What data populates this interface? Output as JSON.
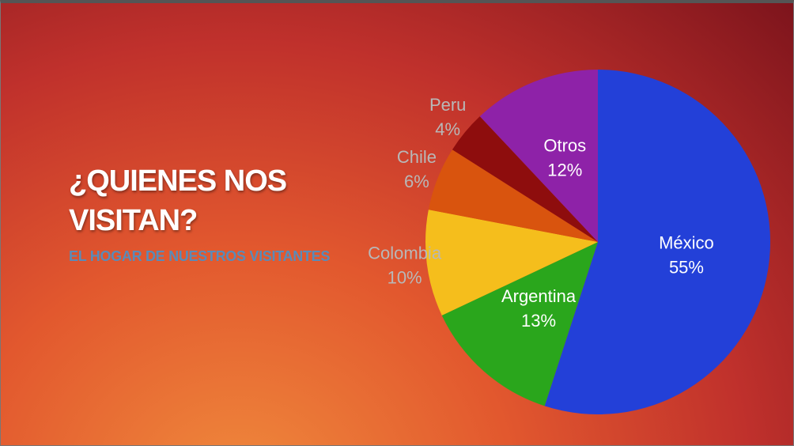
{
  "chart_data": {
    "type": "pie",
    "title": "¿QUIENES NOS VISITAN?",
    "subtitle": "EL HOGAR DE NUESTROS VISITANTES",
    "categories": [
      "México",
      "Argentina",
      "Colombia",
      "Chile",
      "Peru",
      "Otros"
    ],
    "values": [
      55,
      13,
      10,
      6,
      4,
      12
    ],
    "value_labels": [
      "55%",
      "13%",
      "10%",
      "6%",
      "4%",
      "12%"
    ],
    "colors": [
      "#2340d8",
      "#2aa61c",
      "#f5be1c",
      "#d9540e",
      "#8e0d0d",
      "#8e22a8"
    ]
  }
}
